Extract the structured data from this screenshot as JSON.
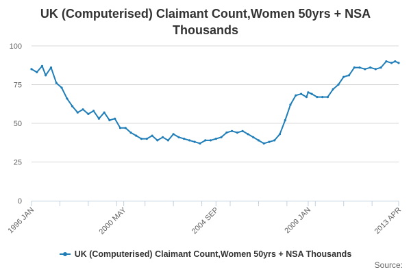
{
  "colors": {
    "series": "#1f7db8"
  },
  "chart_data": {
    "type": "line",
    "title": "UK (Computerised) Claimant Count,Women 50yrs + NSA Thousands",
    "title_lines": [
      "UK (Computerised) Claimant Count,Women 50yrs + NSA",
      "Thousands"
    ],
    "xlabel": "",
    "ylabel": "",
    "ylim": [
      0,
      100
    ],
    "y_ticks": [
      0,
      25,
      50,
      75,
      100
    ],
    "x_ticks": [
      "1996 JAN",
      "2000 MAY",
      "2004 SEP",
      "2009 JAN",
      "2013 APR"
    ],
    "x_tick_dates": [
      "1996-01",
      "2000-05",
      "2004-09",
      "2009-01",
      "2013-04"
    ],
    "grid": true,
    "legend_position": "bottom-center",
    "source_label": "Source:",
    "series": [
      {
        "name": "UK (Computerised) Claimant Count,Women 50yrs + NSA Thousands",
        "x": [
          "1996-01",
          "1996-04",
          "1996-07",
          "1996-09",
          "1996-12",
          "1997-03",
          "1997-06",
          "1997-09",
          "1997-12",
          "1998-03",
          "1998-06",
          "1998-09",
          "1998-12",
          "1999-03",
          "1999-06",
          "1999-09",
          "1999-12",
          "2000-03",
          "2000-06",
          "2000-09",
          "2000-12",
          "2001-03",
          "2001-06",
          "2001-09",
          "2001-12",
          "2002-03",
          "2002-06",
          "2002-09",
          "2002-12",
          "2003-03",
          "2003-06",
          "2003-09",
          "2003-12",
          "2004-03",
          "2004-06",
          "2004-09",
          "2004-12",
          "2005-03",
          "2005-06",
          "2005-09",
          "2005-12",
          "2006-03",
          "2006-06",
          "2006-09",
          "2006-12",
          "2007-03",
          "2007-06",
          "2007-09",
          "2007-12",
          "2008-03",
          "2008-06",
          "2008-09",
          "2008-12",
          "2009-01",
          "2009-03",
          "2009-06",
          "2009-09",
          "2009-12",
          "2010-03",
          "2010-06",
          "2010-09",
          "2010-12",
          "2011-03",
          "2011-06",
          "2011-09",
          "2011-12",
          "2012-03",
          "2012-06",
          "2012-09",
          "2012-12",
          "2013-02",
          "2013-04"
        ],
        "values": [
          85,
          83,
          87,
          81,
          86,
          76,
          73,
          66,
          61,
          57,
          59,
          56,
          58,
          53,
          57,
          52,
          53,
          47,
          47,
          44,
          42,
          40,
          40,
          42,
          39,
          41,
          39,
          43,
          41,
          40,
          39,
          38,
          37,
          39,
          39,
          40,
          41,
          44,
          45,
          44,
          45,
          43,
          41,
          39,
          37,
          38,
          39,
          43,
          52,
          62,
          68,
          69,
          67,
          70,
          69,
          67,
          67,
          67,
          72,
          75,
          80,
          81,
          86,
          86,
          85,
          86,
          85,
          86,
          90,
          89,
          90,
          89
        ]
      }
    ]
  }
}
